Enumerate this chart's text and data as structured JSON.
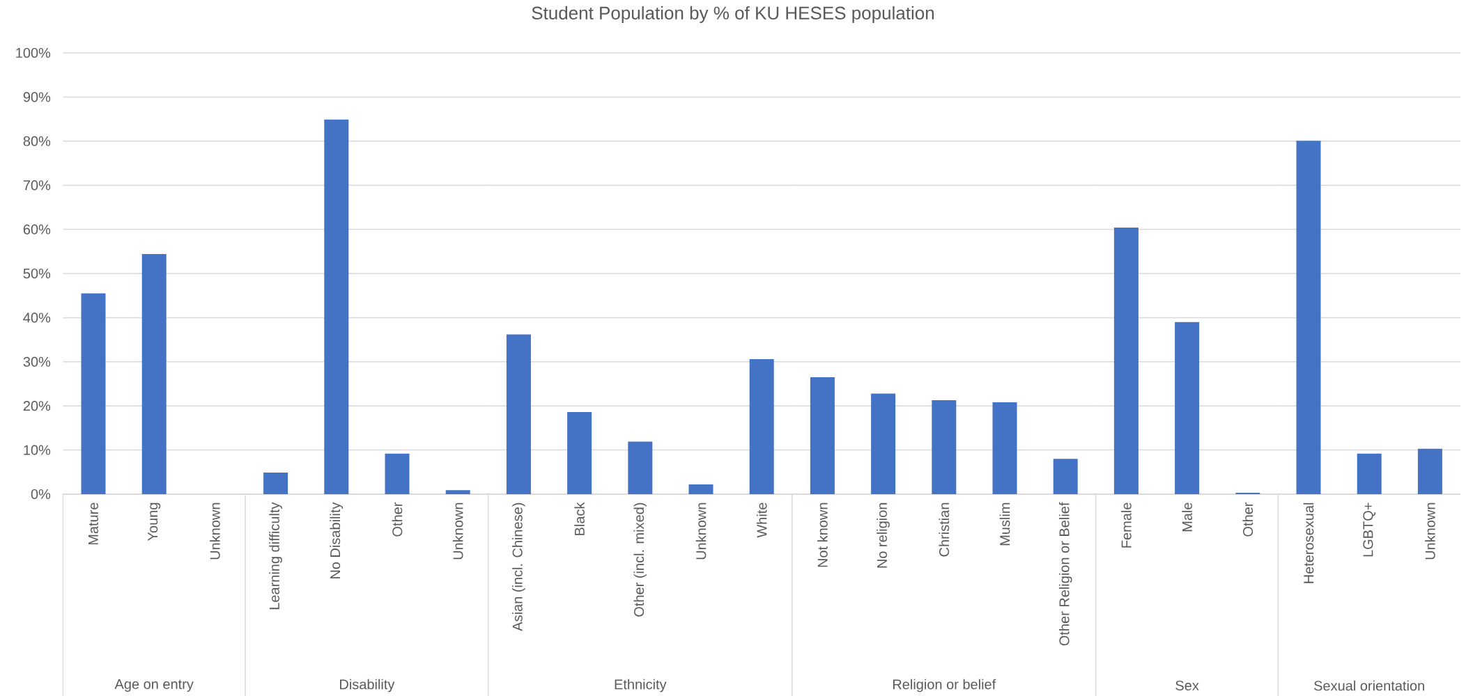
{
  "chart_data": [
    {
      "type": "bar",
      "xlabel": "Age on entry",
      "categories": [
        "Mature",
        "Young",
        "Unknown"
      ],
      "values": [
        45.5,
        54.4,
        0
      ],
      "color": "#4472c4",
      "ylim": [
        0,
        100
      ],
      "yticks": [
        {
          "value": 0,
          "label": "0%"
        },
        {
          "value": 10,
          "label": "10%"
        },
        {
          "value": 20,
          "label": "20%"
        },
        {
          "value": 30,
          "label": "30%"
        },
        {
          "value": 40,
          "label": "40%"
        },
        {
          "value": 50,
          "label": "50%"
        },
        {
          "value": 60,
          "label": "60%"
        },
        {
          "value": 70,
          "label": "70%"
        },
        {
          "value": 80,
          "label": "80%"
        },
        {
          "value": 90,
          "label": "90%"
        },
        {
          "value": 100,
          "label": "100%"
        }
      ],
      "grid": "y"
    },
    {
      "type": "bar",
      "xlabel": "Disability",
      "categories": [
        "Learning difficulty",
        "No Disability",
        "Other",
        "Unknown"
      ],
      "values": [
        4.9,
        84.9,
        9.2,
        0.9
      ],
      "color": "#4472c4",
      "ylim": [
        0,
        100
      ],
      "yticks": [
        {
          "value": 0,
          "label": null
        },
        {
          "value": 10,
          "label": null
        },
        {
          "value": 20,
          "label": null
        },
        {
          "value": 30,
          "label": null
        },
        {
          "value": 40,
          "label": null
        },
        {
          "value": 50,
          "label": null
        },
        {
          "value": 60,
          "label": null
        },
        {
          "value": 70,
          "label": null
        },
        {
          "value": 80,
          "label": null
        },
        {
          "value": 90,
          "label": null
        },
        {
          "value": 100,
          "label": null
        }
      ],
      "grid": "y",
      "tick_labels": "x"
    },
    {
      "type": "bar",
      "title": "Student Population by % of KU HESES population",
      "xlabel": "Ethnicity",
      "categories": [
        "Asian (incl. Chinese)",
        "Black",
        "Other (incl. mixed)",
        "Unknown",
        "White"
      ],
      "values": [
        36.2,
        18.6,
        11.9,
        2.2,
        30.6
      ],
      "color": "#4472c4",
      "ylim": [
        0,
        100
      ],
      "yticks": [
        {
          "value": 0,
          "label": null
        },
        {
          "value": 10,
          "label": null
        },
        {
          "value": 20,
          "label": null
        },
        {
          "value": 30,
          "label": null
        },
        {
          "value": 40,
          "label": null
        },
        {
          "value": 50,
          "label": null
        },
        {
          "value": 60,
          "label": null
        },
        {
          "value": 70,
          "label": null
        },
        {
          "value": 80,
          "label": null
        },
        {
          "value": 90,
          "label": null
        },
        {
          "value": 100,
          "label": null
        }
      ],
      "grid": "y",
      "tick_labels": "x"
    },
    {
      "type": "bar",
      "xlabel": "Religion or belief",
      "categories": [
        "Not known",
        "No religion",
        "Christian",
        "Muslim",
        "Other Religion or Belief"
      ],
      "values": [
        26.5,
        22.8,
        21.3,
        20.8,
        8.0
      ],
      "color": "#4472c4",
      "ylim": [
        0,
        100
      ],
      "yticks": [
        {
          "value": 0,
          "label": null
        },
        {
          "value": 10,
          "label": null
        },
        {
          "value": 20,
          "label": null
        },
        {
          "value": 30,
          "label": null
        },
        {
          "value": 40,
          "label": null
        },
        {
          "value": 50,
          "label": null
        },
        {
          "value": 60,
          "label": null
        },
        {
          "value": 70,
          "label": null
        },
        {
          "value": 80,
          "label": null
        },
        {
          "value": 90,
          "label": null
        },
        {
          "value": 100,
          "label": null
        }
      ],
      "grid": "y",
      "tick_labels": "x"
    },
    {
      "type": "bar",
      "xlabel": "Sex",
      "categories": [
        "Female",
        "Male",
        "Other"
      ],
      "values": [
        60.4,
        39.0,
        0.3
      ],
      "color": "#4472c4",
      "ylim": [
        0,
        100
      ],
      "yticks": [
        {
          "value": 0,
          "label": null
        },
        {
          "value": 10,
          "label": null
        },
        {
          "value": 20,
          "label": null
        },
        {
          "value": 30,
          "label": null
        },
        {
          "value": 40,
          "label": null
        },
        {
          "value": 50,
          "label": null
        },
        {
          "value": 60,
          "label": null
        },
        {
          "value": 70,
          "label": null
        },
        {
          "value": 80,
          "label": null
        },
        {
          "value": 90,
          "label": null
        },
        {
          "value": 100,
          "label": null
        }
      ],
      "grid": "y",
      "tick_labels": "x"
    },
    {
      "type": "bar",
      "xlabel": "Sexual orientation",
      "categories": [
        "Heterosexual",
        "LGBTQ+",
        "Unknown"
      ],
      "values": [
        80.1,
        9.2,
        10.3
      ],
      "color": "#4472c4",
      "ylim": [
        0,
        100
      ],
      "yticks": [
        {
          "value": 0,
          "label": null
        },
        {
          "value": 10,
          "label": null
        },
        {
          "value": 20,
          "label": null
        },
        {
          "value": 30,
          "label": null
        },
        {
          "value": 40,
          "label": null
        },
        {
          "value": 50,
          "label": null
        },
        {
          "value": 60,
          "label": null
        },
        {
          "value": 70,
          "label": null
        },
        {
          "value": 80,
          "label": null
        },
        {
          "value": 90,
          "label": null
        },
        {
          "value": 100,
          "label": null
        }
      ],
      "grid": "y",
      "tick_labels": "x"
    }
  ]
}
